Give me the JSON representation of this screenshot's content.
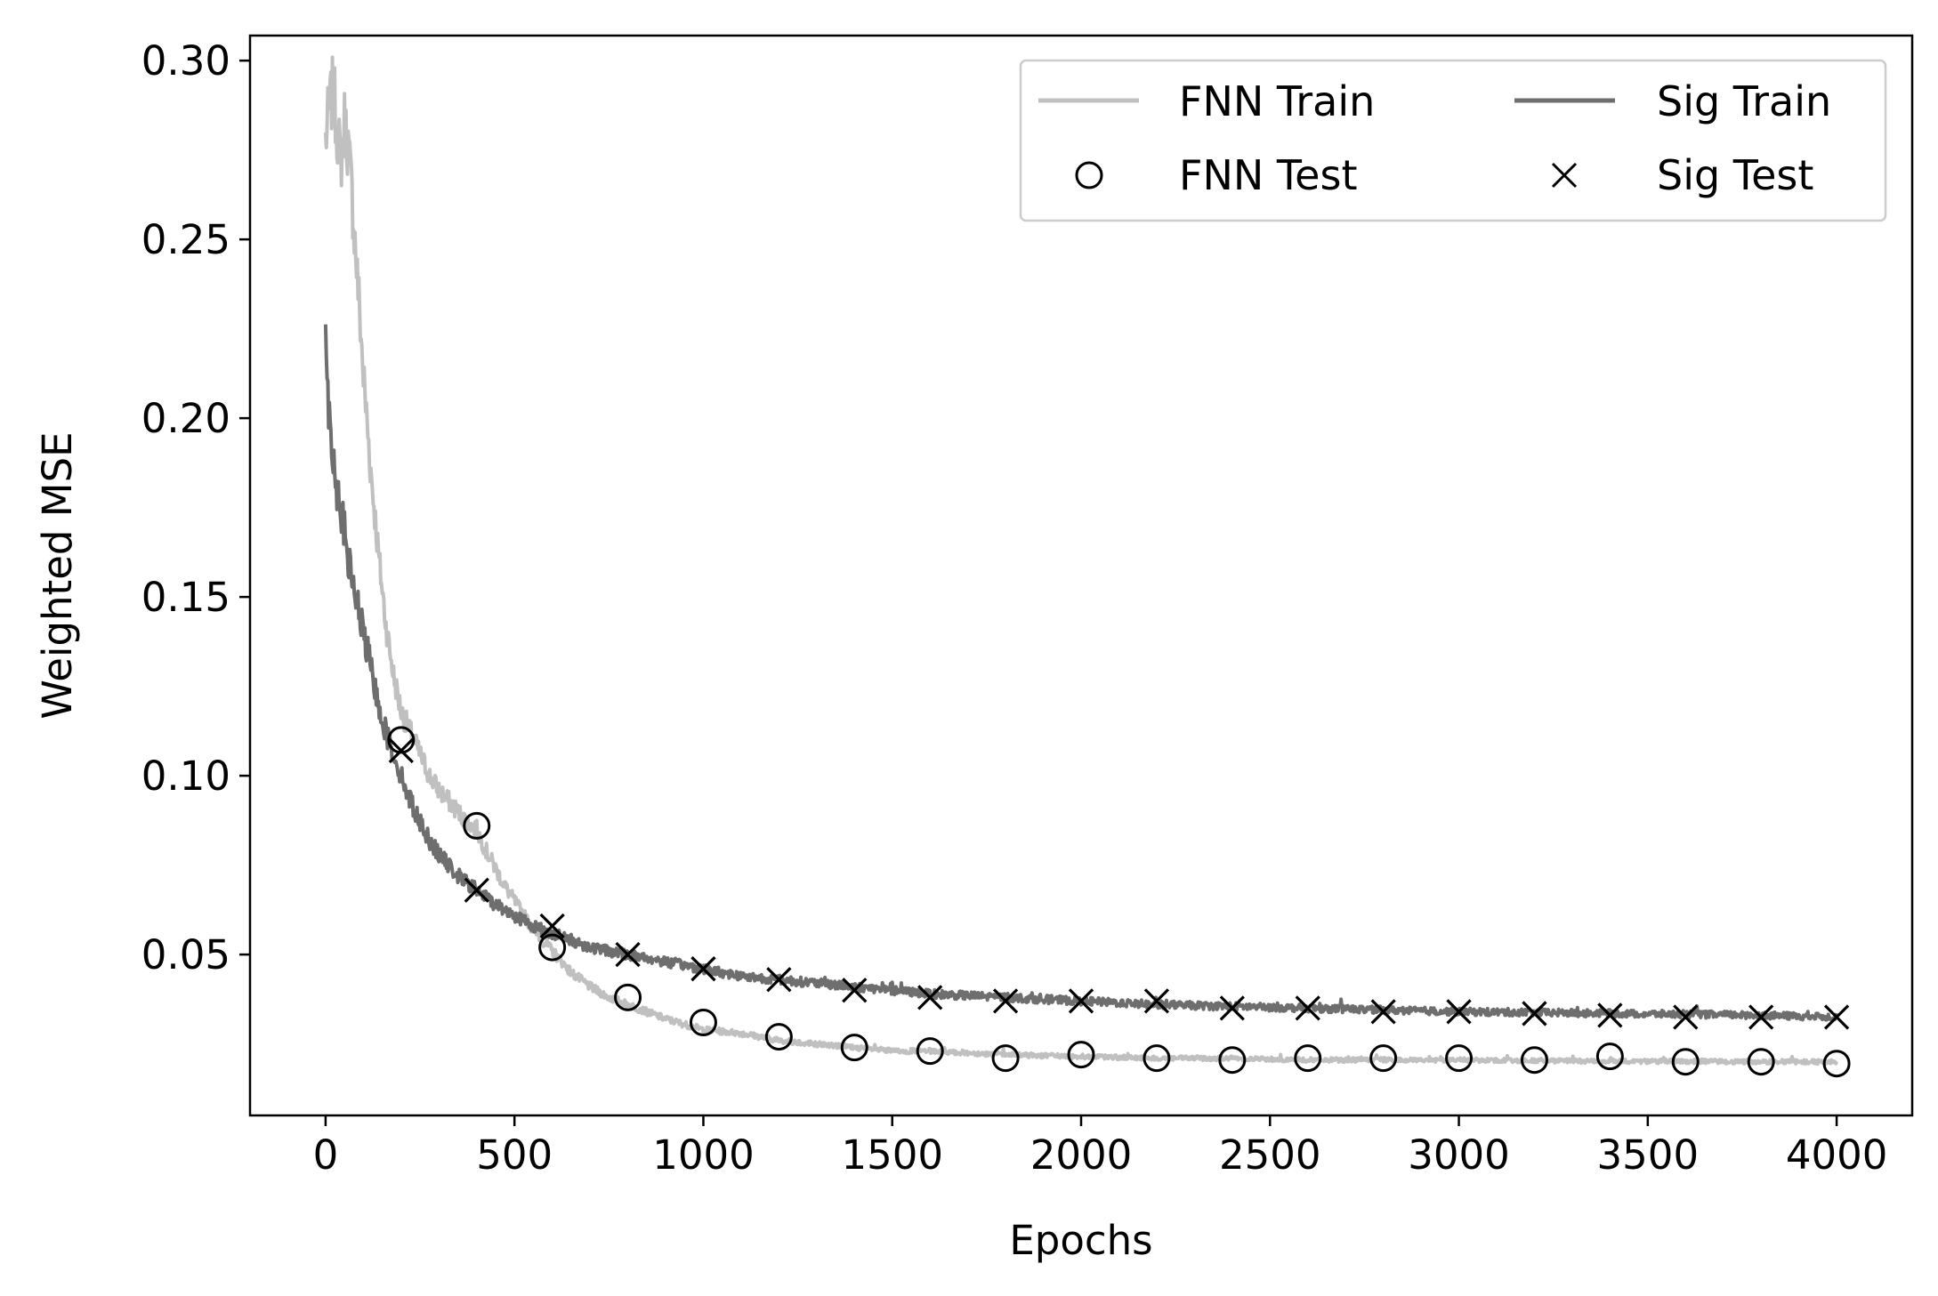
{
  "chart_data": {
    "type": "line",
    "xlabel": "Epochs",
    "ylabel": "Weighted MSE",
    "xlim": [
      -200,
      4200
    ],
    "ylim": [
      0.005,
      0.307
    ],
    "xticks": [
      0,
      500,
      1000,
      1500,
      2000,
      2500,
      3000,
      3500,
      4000
    ],
    "yticks": [
      0.05,
      0.1,
      0.15,
      0.2,
      0.25,
      0.3
    ],
    "xtick_labels": [
      "0",
      "500",
      "1000",
      "1500",
      "2000",
      "2500",
      "3000",
      "3500",
      "4000"
    ],
    "ytick_labels": [
      "0.05",
      "0.10",
      "0.15",
      "0.20",
      "0.25",
      "0.30"
    ],
    "grid": false,
    "legend_position": "top-right",
    "series": [
      {
        "name": "FNN Train",
        "kind": "line",
        "color": "#c0c0c0",
        "x": [
          0,
          10,
          20,
          30,
          40,
          50,
          60,
          70,
          80,
          90,
          100,
          120,
          140,
          160,
          180,
          200,
          225,
          250,
          275,
          300,
          325,
          350,
          375,
          400,
          425,
          450,
          475,
          500,
          550,
          600,
          650,
          700,
          750,
          800,
          900,
          1000,
          1100,
          1200,
          1300,
          1400,
          1500,
          1600,
          1800,
          2000,
          2200,
          2400,
          2600,
          2800,
          3000,
          3200,
          3400,
          3600,
          3800,
          4000
        ],
        "y": [
          0.278,
          0.286,
          0.292,
          0.282,
          0.271,
          0.283,
          0.276,
          0.262,
          0.246,
          0.23,
          0.212,
          0.185,
          0.162,
          0.142,
          0.128,
          0.118,
          0.112,
          0.106,
          0.1,
          0.096,
          0.093,
          0.09,
          0.087,
          0.085,
          0.079,
          0.074,
          0.069,
          0.065,
          0.057,
          0.051,
          0.045,
          0.041,
          0.038,
          0.036,
          0.032,
          0.029,
          0.028,
          0.026,
          0.025,
          0.024,
          0.023,
          0.023,
          0.022,
          0.0215,
          0.021,
          0.021,
          0.0205,
          0.0205,
          0.0205,
          0.0203,
          0.0202,
          0.0201,
          0.02,
          0.02
        ]
      },
      {
        "name": "Sig Train",
        "kind": "line",
        "color": "#6e6e6e",
        "x": [
          0,
          10,
          20,
          30,
          40,
          50,
          60,
          80,
          100,
          120,
          140,
          160,
          180,
          200,
          225,
          250,
          275,
          300,
          325,
          350,
          375,
          400,
          450,
          500,
          550,
          600,
          650,
          700,
          800,
          900,
          1000,
          1100,
          1200,
          1300,
          1400,
          1500,
          1600,
          1800,
          2000,
          2200,
          2400,
          2600,
          2800,
          3000,
          3200,
          3400,
          3600,
          3800,
          4000
        ],
        "y": [
          0.221,
          0.2,
          0.19,
          0.18,
          0.175,
          0.168,
          0.16,
          0.15,
          0.14,
          0.13,
          0.12,
          0.112,
          0.106,
          0.1,
          0.093,
          0.087,
          0.082,
          0.078,
          0.075,
          0.072,
          0.07,
          0.068,
          0.064,
          0.061,
          0.058,
          0.056,
          0.054,
          0.052,
          0.05,
          0.048,
          0.046,
          0.044,
          0.043,
          0.042,
          0.041,
          0.04,
          0.039,
          0.038,
          0.037,
          0.036,
          0.0355,
          0.035,
          0.0345,
          0.034,
          0.0338,
          0.0335,
          0.0333,
          0.033,
          0.0325
        ]
      },
      {
        "name": "FNN Test",
        "kind": "scatter",
        "marker": "circle",
        "color": "#000000",
        "x": [
          200,
          400,
          600,
          800,
          1000,
          1200,
          1400,
          1600,
          1800,
          2000,
          2200,
          2400,
          2600,
          2800,
          3000,
          3200,
          3400,
          3600,
          3800,
          4000
        ],
        "y": [
          0.11,
          0.086,
          0.052,
          0.038,
          0.031,
          0.027,
          0.024,
          0.023,
          0.021,
          0.022,
          0.021,
          0.0205,
          0.021,
          0.021,
          0.021,
          0.0205,
          0.0215,
          0.02,
          0.02,
          0.0195
        ]
      },
      {
        "name": "Sig Test",
        "kind": "scatter",
        "marker": "x",
        "color": "#000000",
        "x": [
          200,
          400,
          600,
          800,
          1000,
          1200,
          1400,
          1600,
          1800,
          2000,
          2200,
          2400,
          2600,
          2800,
          3000,
          3200,
          3400,
          3600,
          3800,
          4000
        ],
        "y": [
          0.107,
          0.068,
          0.058,
          0.05,
          0.046,
          0.043,
          0.04,
          0.038,
          0.037,
          0.037,
          0.037,
          0.035,
          0.035,
          0.034,
          0.034,
          0.0335,
          0.033,
          0.0325,
          0.0325,
          0.0325
        ]
      }
    ],
    "legend": {
      "items": [
        {
          "label": "FNN Train",
          "series": "FNN Train"
        },
        {
          "label": "Sig Train",
          "series": "Sig Train"
        },
        {
          "label": "FNN Test",
          "series": "FNN Test"
        },
        {
          "label": "Sig Test",
          "series": "Sig Test"
        }
      ]
    }
  }
}
